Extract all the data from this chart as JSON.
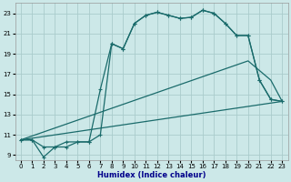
{
  "xlabel": "Humidex (Indice chaleur)",
  "background_color": "#cce8e8",
  "grid_color": "#aacccc",
  "line_color": "#1a6b6b",
  "xlim": [
    -0.5,
    23.5
  ],
  "ylim": [
    8.5,
    24.0
  ],
  "xticks": [
    0,
    1,
    2,
    3,
    4,
    5,
    6,
    7,
    8,
    9,
    10,
    11,
    12,
    13,
    14,
    15,
    16,
    17,
    18,
    19,
    20,
    21,
    22,
    23
  ],
  "yticks": [
    9,
    11,
    13,
    15,
    17,
    19,
    21,
    23
  ],
  "line1_x": [
    0,
    1,
    2,
    3,
    4,
    5,
    6,
    7,
    8,
    9,
    10,
    11,
    12,
    13,
    14,
    15,
    16,
    17,
    18,
    19,
    20,
    21,
    22,
    23
  ],
  "line1_y": [
    10.5,
    10.5,
    8.8,
    9.8,
    9.8,
    10.3,
    10.3,
    15.5,
    20.0,
    19.5,
    22.0,
    22.8,
    23.1,
    22.8,
    22.5,
    22.6,
    23.3,
    23.0,
    22.0,
    20.8,
    20.8,
    16.4,
    14.5,
    14.3
  ],
  "line2_x": [
    0,
    1,
    2,
    3,
    4,
    5,
    6,
    7,
    8,
    9,
    10,
    11,
    12,
    13,
    14,
    15,
    16,
    17,
    18,
    19,
    20,
    21,
    22,
    23
  ],
  "line2_y": [
    10.5,
    10.5,
    9.8,
    9.8,
    10.3,
    10.3,
    10.3,
    11.0,
    20.0,
    19.5,
    22.0,
    22.8,
    23.1,
    22.8,
    22.5,
    22.6,
    23.3,
    23.0,
    22.0,
    20.8,
    20.8,
    16.4,
    14.5,
    14.3
  ],
  "line3_x": [
    0,
    23
  ],
  "line3_y": [
    10.5,
    14.3
  ],
  "line4_x": [
    0,
    20,
    22,
    23
  ],
  "line4_y": [
    10.5,
    18.3,
    16.4,
    14.3
  ]
}
